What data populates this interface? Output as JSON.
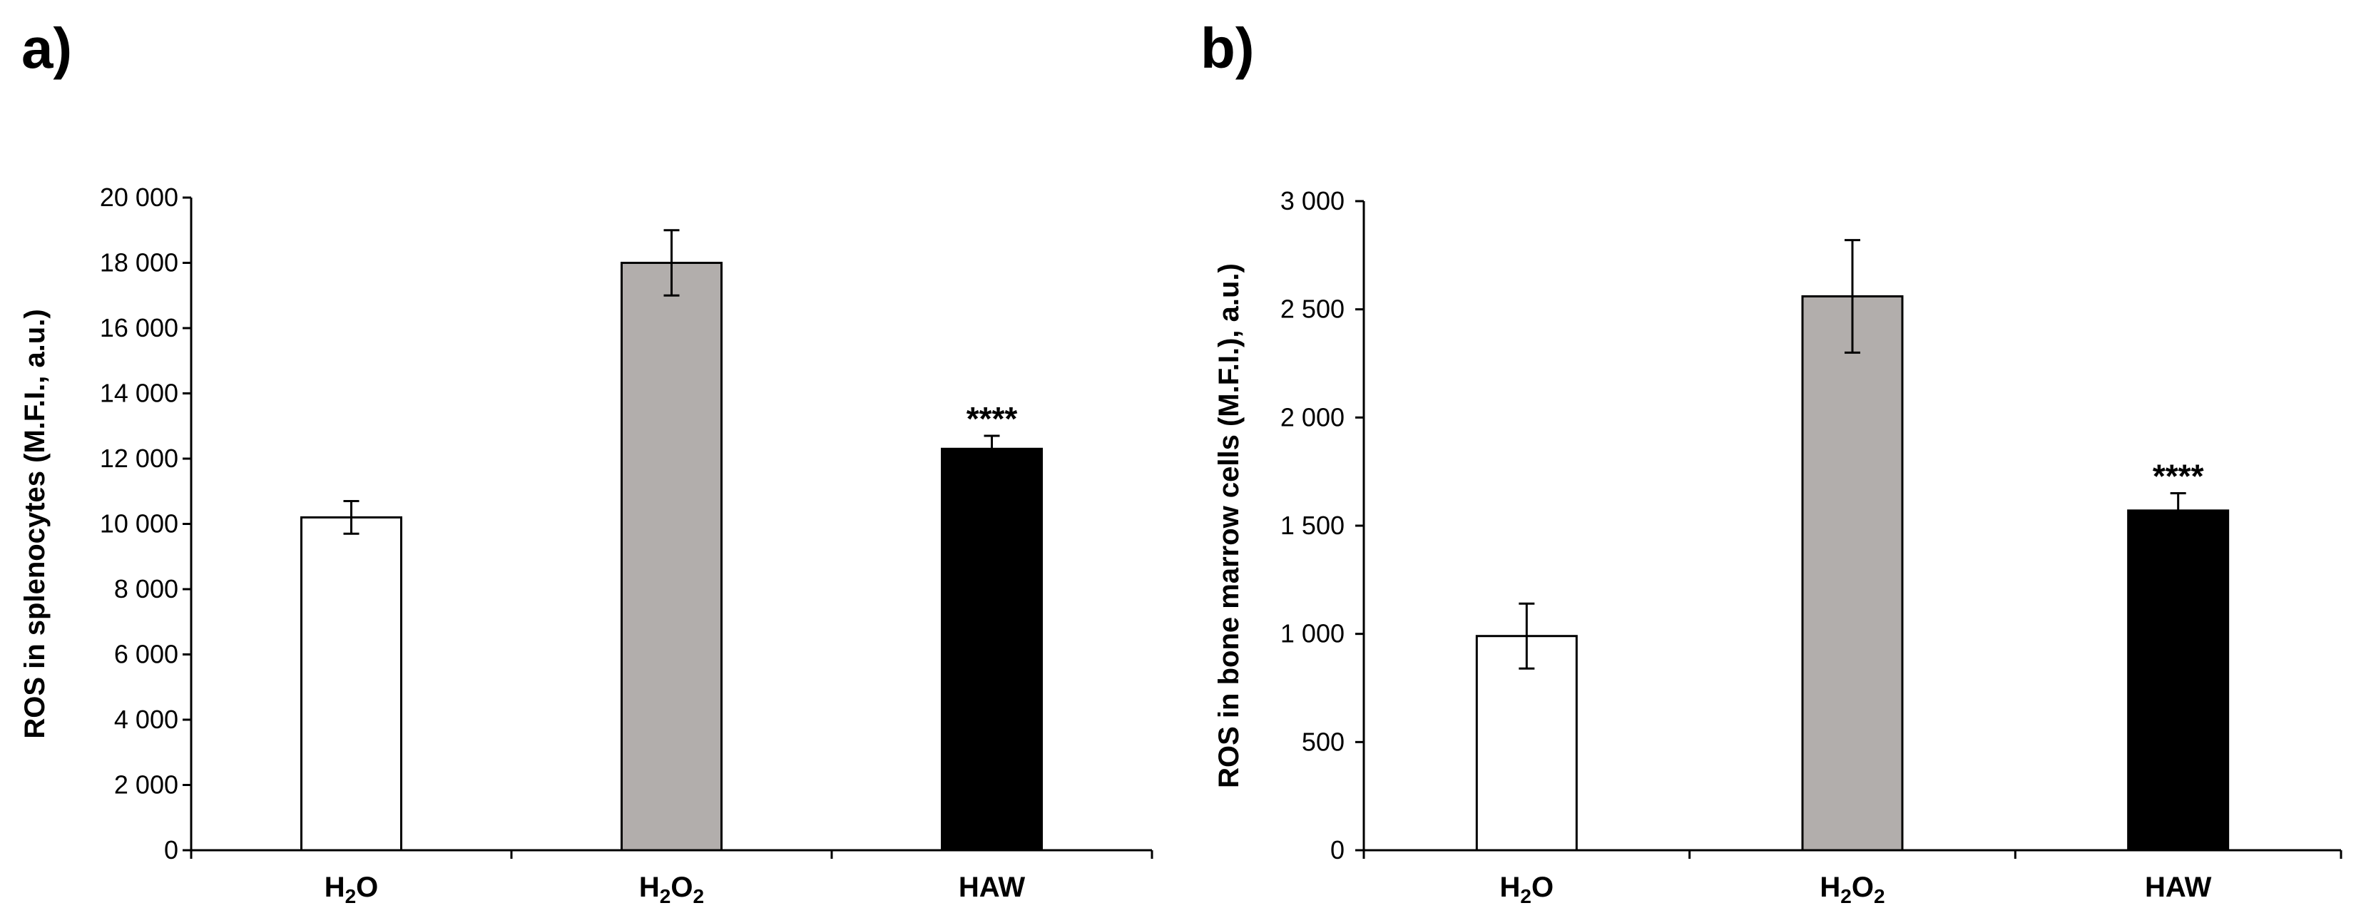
{
  "chart_data": [
    {
      "panel_label": "a)",
      "type": "bar",
      "ylabel": "ROS in splenocytes (M.F.I., a.u.)",
      "ylim": [
        0,
        20000
      ],
      "yticks": [
        0,
        2000,
        4000,
        6000,
        8000,
        10000,
        12000,
        14000,
        16000,
        18000,
        20000
      ],
      "ytick_labels": [
        "0",
        "2 000",
        "4 000",
        "6 000",
        "8 000",
        "10 000",
        "12 000",
        "14 000",
        "16 000",
        "18 000",
        "20 000"
      ],
      "categories": [
        {
          "base": "H",
          "sub1": "2",
          "mid": "O",
          "sub2": ""
        },
        {
          "base": "H",
          "sub1": "2",
          "mid": "O",
          "sub2": "2"
        },
        {
          "base": "HAW",
          "sub1": "",
          "mid": "",
          "sub2": ""
        }
      ],
      "values": [
        10200,
        18000,
        12300
      ],
      "errors": [
        500,
        1000,
        400
      ],
      "bar_colors": [
        "#ffffff",
        "#b2aeac",
        "#000000"
      ],
      "annotations": [
        "",
        "",
        "****"
      ],
      "grid": false
    },
    {
      "panel_label": "b)",
      "type": "bar",
      "ylabel": "ROS in bone marrow cells (M.F.I.), a.u.)",
      "ylim": [
        0,
        3000
      ],
      "yticks": [
        0,
        500,
        1000,
        1500,
        2000,
        2500,
        3000
      ],
      "ytick_labels": [
        "0",
        "500",
        "1 000",
        "1 500",
        "2 000",
        "2 500",
        "3 000"
      ],
      "categories": [
        {
          "base": "H",
          "sub1": "2",
          "mid": "O",
          "sub2": ""
        },
        {
          "base": "H",
          "sub1": "2",
          "mid": "O",
          "sub2": "2"
        },
        {
          "base": "HAW",
          "sub1": "",
          "mid": "",
          "sub2": ""
        }
      ],
      "values": [
        990,
        2560,
        1570
      ],
      "errors": [
        150,
        260,
        80
      ],
      "bar_colors": [
        "#ffffff",
        "#b2aeac",
        "#000000"
      ],
      "annotations": [
        "",
        "",
        "****"
      ],
      "grid": false
    }
  ]
}
